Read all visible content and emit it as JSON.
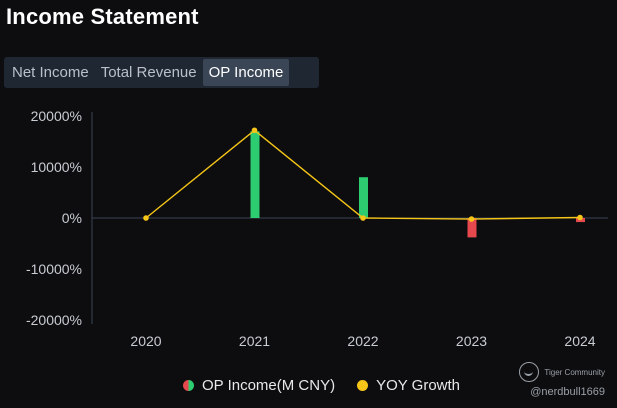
{
  "page": {
    "title": "Income Statement"
  },
  "tabs": [
    {
      "label": "Net Income",
      "active": false
    },
    {
      "label": "Total Revenue",
      "active": false
    },
    {
      "label": "OP Income",
      "active": true
    }
  ],
  "legend": {
    "bar_label": "OP Income(M CNY)",
    "line_label": "YOY Growth"
  },
  "watermark": {
    "brand": "Tiger Community",
    "handle": "@nerdbull1669"
  },
  "colors": {
    "positive": "#2ecc71",
    "negative": "#e5484d",
    "line": "#f5c518",
    "axis": "#3b4250"
  },
  "chart_data": {
    "type": "bar",
    "categories": [
      "2020",
      "2021",
      "2022",
      "2023",
      "2024"
    ],
    "y_ticks": [
      "20000%",
      "10000%",
      "0%",
      "-10000%",
      "-20000%"
    ],
    "ylim": [
      -20000,
      20000
    ],
    "bar_scale_note": "",
    "series": [
      {
        "name": "OP Income(M CNY)",
        "kind": "bar",
        "values": [
          0,
          17000,
          8000,
          -3800,
          -800
        ]
      },
      {
        "name": "YOY Growth",
        "kind": "line",
        "values": [
          0,
          17200,
          0,
          -200,
          100
        ]
      }
    ],
    "grid": false,
    "legend_position": "bottom"
  }
}
